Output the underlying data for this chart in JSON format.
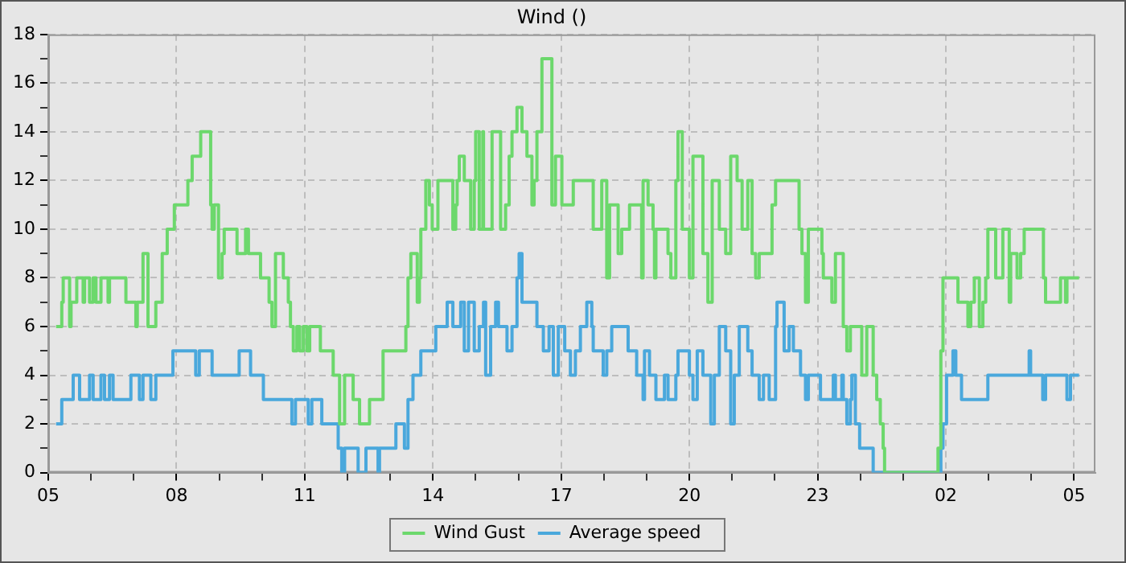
{
  "chart_data": {
    "type": "step",
    "title": "Wind ()",
    "xlim": [
      "--01-01T05:00",
      "--01-02T05:30"
    ],
    "xticks": [
      {
        "value": "--01-01T05:00",
        "label": "05"
      },
      {
        "value": "--01-01T06:00",
        "label": null
      },
      {
        "value": "--01-01T07:00",
        "label": null
      },
      {
        "value": "--01-01T08:00",
        "label": "08"
      },
      {
        "value": "--01-01T09:00",
        "label": null
      },
      {
        "value": "--01-01T10:00",
        "label": null
      },
      {
        "value": "--01-01T11:00",
        "label": "11"
      },
      {
        "value": "--01-01T12:00",
        "label": null
      },
      {
        "value": "--01-01T13:00",
        "label": null
      },
      {
        "value": "--01-01T14:00",
        "label": "14"
      },
      {
        "value": "--01-01T15:00",
        "label": null
      },
      {
        "value": "--01-01T16:00",
        "label": null
      },
      {
        "value": "--01-01T17:00",
        "label": "17"
      },
      {
        "value": "--01-01T18:00",
        "label": null
      },
      {
        "value": "--01-01T19:00",
        "label": null
      },
      {
        "value": "--01-01T20:00",
        "label": "20"
      },
      {
        "value": "--01-01T21:00",
        "label": null
      },
      {
        "value": "--01-01T22:00",
        "label": null
      },
      {
        "value": "--01-01T23:00",
        "label": "23"
      },
      {
        "value": "--01-02T00:00",
        "label": null
      },
      {
        "value": "--01-02T01:00",
        "label": null
      },
      {
        "value": "--01-02T02:00",
        "label": "02"
      },
      {
        "value": "--01-02T03:00",
        "label": null
      },
      {
        "value": "--01-02T04:00",
        "label": null
      },
      {
        "value": "--01-02T05:00",
        "label": "05"
      }
    ],
    "ylim": [
      0,
      18
    ],
    "yticks": [
      0,
      {
        "value": 1,
        "label": null
      },
      2,
      {
        "value": 3,
        "label": null
      },
      4,
      {
        "value": 5,
        "label": null
      },
      6,
      {
        "value": 7,
        "label": null
      },
      8,
      {
        "value": 9,
        "label": null
      },
      10,
      {
        "value": 11,
        "label": null
      },
      12,
      {
        "value": 13,
        "label": null
      },
      14,
      {
        "value": 15,
        "label": null
      },
      16,
      {
        "value": 17,
        "label": null
      },
      18
    ],
    "grid": true,
    "legend": "bottom",
    "line_style": "solid",
    "marker": "none",
    "series": [
      {
        "name": "Wind Gust",
        "color": "#6cd86c",
        "x": [
          "--01-01T05:11",
          "--01-01T05:19",
          "--01-01T05:21",
          "--01-01T05:30",
          "--01-01T05:32",
          "--01-01T05:40",
          "--01-01T05:49",
          "--01-01T05:51",
          "--01-01T05:58",
          "--01-01T06:03",
          "--01-01T06:07",
          "--01-01T06:14",
          "--01-01T06:24",
          "--01-01T06:26",
          "--01-01T06:49",
          "--01-01T07:03",
          "--01-01T07:05",
          "--01-01T07:13",
          "--01-01T07:20",
          "--01-01T07:31",
          "--01-01T07:40",
          "--01-01T07:47",
          "--01-01T07:57",
          "--01-01T08:16",
          "--01-01T08:22",
          "--01-01T08:34",
          "--01-01T08:48",
          "--01-01T08:50",
          "--01-01T08:53",
          "--01-01T08:59",
          "--01-01T09:04",
          "--01-01T09:07",
          "--01-01T09:25",
          "--01-01T09:37",
          "--01-01T09:41",
          "--01-01T09:58",
          "--01-01T10:10",
          "--01-01T10:14",
          "--01-01T10:19",
          "--01-01T10:30",
          "--01-01T10:37",
          "--01-01T10:40",
          "--01-01T10:44",
          "--01-01T10:49",
          "--01-01T10:53",
          "--01-01T10:58",
          "--01-01T11:03",
          "--01-01T11:07",
          "--01-01T11:22",
          "--01-01T11:40",
          "--01-01T11:49",
          "--01-01T11:56",
          "--01-01T12:08",
          "--01-01T12:17",
          "--01-01T12:31",
          "--01-01T12:50",
          "--01-01T13:22",
          "--01-01T13:25",
          "--01-01T13:29",
          "--01-01T13:38",
          "--01-01T13:41",
          "--01-01T13:43",
          "--01-01T13:50",
          "--01-01T13:55",
          "--01-01T13:59",
          "--01-01T14:07",
          "--01-01T14:28",
          "--01-01T14:32",
          "--01-01T14:34",
          "--01-01T14:37",
          "--01-01T14:44",
          "--01-01T14:53",
          "--01-01T14:58",
          "--01-01T15:00",
          "--01-01T15:05",
          "--01-01T15:10",
          "--01-01T15:11",
          "--01-01T15:23",
          "--01-01T15:35",
          "--01-01T15:42",
          "--01-01T15:47",
          "--01-01T15:51",
          "--01-01T15:58",
          "--01-01T16:05",
          "--01-01T16:12",
          "--01-01T16:19",
          "--01-01T16:22",
          "--01-01T16:26",
          "--01-01T16:33",
          "--01-01T16:47",
          "--01-01T16:52",
          "--01-01T17:01",
          "--01-01T17:17",
          "--01-01T17:45",
          "--01-01T17:57",
          "--01-01T18:04",
          "--01-01T18:08",
          "--01-01T18:20",
          "--01-01T18:25",
          "--01-01T18:36",
          "--01-01T18:53",
          "--01-01T18:55",
          "--01-01T19:02",
          "--01-01T19:09",
          "--01-01T19:11",
          "--01-01T19:13",
          "--01-01T19:30",
          "--01-01T19:34",
          "--01-01T19:41",
          "--01-01T19:44",
          "--01-01T19:50",
          "--01-01T20:00",
          "--01-01T20:05",
          "--01-01T20:19",
          "--01-01T20:26",
          "--01-01T20:32",
          "--01-01T20:42",
          "--01-01T20:51",
          "--01-01T20:58",
          "--01-01T21:07",
          "--01-01T21:14",
          "--01-01T21:22",
          "--01-01T21:28",
          "--01-01T21:33",
          "--01-01T21:38",
          "--01-01T21:56",
          "--01-01T22:01",
          "--01-01T22:34",
          "--01-01T22:38",
          "--01-01T22:43",
          "--01-01T22:47",
          "--01-01T23:06",
          "--01-01T23:08",
          "--01-01T23:20",
          "--01-01T23:25",
          "--01-01T23:36",
          "--01-01T23:41",
          "--01-01T23:46",
          "--01-02T00:02",
          "--01-02T00:09",
          "--01-02T00:18",
          "--01-02T00:23",
          "--01-02T00:28",
          "--01-02T00:32",
          "--01-02T00:34",
          "--01-02T01:49",
          "--01-02T01:53",
          "--01-02T01:56",
          "--01-02T02:17",
          "--01-02T02:31",
          "--01-02T02:35",
          "--01-02T02:40",
          "--01-02T02:47",
          "--01-02T02:52",
          "--01-02T02:56",
          "--01-02T02:59",
          "--01-02T03:10",
          "--01-02T03:20",
          "--01-02T03:29",
          "--01-02T03:31",
          "--01-02T03:40",
          "--01-02T03:45",
          "--01-02T03:50",
          "--01-02T04:17",
          "--01-02T04:20",
          "--01-02T04:41",
          "--01-02T04:48",
          "--01-02T04:50",
          "--01-02T05:07"
        ],
        "values": [
          6,
          7,
          8,
          6,
          7,
          8,
          7,
          8,
          7,
          8,
          7,
          8,
          7,
          8,
          7,
          6,
          7,
          9,
          6,
          7,
          9,
          10,
          11,
          12,
          13,
          14,
          11,
          10,
          11,
          8,
          9,
          10,
          9,
          10,
          9,
          8,
          7,
          6,
          9,
          8,
          7,
          6,
          5,
          6,
          5,
          6,
          5,
          6,
          5,
          4,
          2,
          4,
          3,
          2,
          3,
          5,
          6,
          8,
          9,
          7,
          8,
          10,
          12,
          11,
          10,
          12,
          10,
          11,
          12,
          13,
          12,
          10,
          12,
          14,
          10,
          14,
          10,
          14,
          10,
          11,
          13,
          14,
          15,
          14,
          13,
          11,
          12,
          14,
          17,
          11,
          13,
          11,
          12,
          10,
          12,
          8,
          11,
          9,
          10,
          11,
          8,
          12,
          11,
          10,
          8,
          10,
          9,
          8,
          12,
          14,
          10,
          8,
          13,
          9,
          7,
          12,
          10,
          9,
          13,
          12,
          10,
          12,
          9,
          8,
          9,
          11,
          12,
          10,
          9,
          7,
          10,
          9,
          8,
          7,
          9,
          6,
          5,
          6,
          4,
          6,
          4,
          3,
          2,
          1,
          0,
          1,
          5,
          8,
          7,
          6,
          7,
          8,
          6,
          7,
          8,
          10,
          8,
          10,
          7,
          9,
          8,
          9,
          10,
          8,
          7,
          8,
          7,
          8,
          8
        ]
      },
      {
        "name": "Average speed",
        "color": "#4aa8dc",
        "x": [
          "--01-01T05:11",
          "--01-01T05:19",
          "--01-01T05:35",
          "--01-01T05:44",
          "--01-01T05:58",
          "--01-01T06:03",
          "--01-01T06:14",
          "--01-01T06:19",
          "--01-01T06:26",
          "--01-01T06:31",
          "--01-01T06:56",
          "--01-01T07:08",
          "--01-01T07:13",
          "--01-01T07:24",
          "--01-01T07:31",
          "--01-01T07:55",
          "--01-01T08:27",
          "--01-01T08:32",
          "--01-01T08:50",
          "--01-01T09:28",
          "--01-01T09:44",
          "--01-01T10:02",
          "--01-01T10:42",
          "--01-01T10:47",
          "--01-01T11:05",
          "--01-01T11:10",
          "--01-01T11:24",
          "--01-01T11:47",
          "--01-01T11:52",
          "--01-01T11:56",
          "--01-01T12:15",
          "--01-01T12:26",
          "--01-01T12:43",
          "--01-01T12:45",
          "--01-01T13:08",
          "--01-01T13:20",
          "--01-01T13:25",
          "--01-01T13:32",
          "--01-01T13:43",
          "--01-01T14:04",
          "--01-01T14:20",
          "--01-01T14:28",
          "--01-01T14:39",
          "--01-01T14:44",
          "--01-01T14:50",
          "--01-01T14:58",
          "--01-01T15:05",
          "--01-01T15:11",
          "--01-01T15:14",
          "--01-01T15:21",
          "--01-01T15:28",
          "--01-01T15:32",
          "--01-01T15:44",
          "--01-01T15:51",
          "--01-01T15:58",
          "--01-01T16:01",
          "--01-01T16:05",
          "--01-01T16:26",
          "--01-01T16:35",
          "--01-01T16:43",
          "--01-01T16:49",
          "--01-01T16:56",
          "--01-01T17:05",
          "--01-01T17:13",
          "--01-01T17:20",
          "--01-01T17:27",
          "--01-01T17:36",
          "--01-01T17:43",
          "--01-01T17:45",
          "--01-01T17:59",
          "--01-01T18:04",
          "--01-01T18:11",
          "--01-01T18:34",
          "--01-01T18:46",
          "--01-01T18:55",
          "--01-01T18:57",
          "--01-01T19:04",
          "--01-01T19:13",
          "--01-01T19:25",
          "--01-01T19:30",
          "--01-01T19:41",
          "--01-01T19:44",
          "--01-01T20:00",
          "--01-01T20:05",
          "--01-01T20:11",
          "--01-01T20:19",
          "--01-01T20:30",
          "--01-01T20:35",
          "--01-01T20:42",
          "--01-01T20:51",
          "--01-01T20:58",
          "--01-01T21:03",
          "--01-01T21:10",
          "--01-01T21:22",
          "--01-01T21:28",
          "--01-01T21:38",
          "--01-01T21:44",
          "--01-01T21:52",
          "--01-01T22:01",
          "--01-01T22:03",
          "--01-01T22:13",
          "--01-01T22:20",
          "--01-01T22:26",
          "--01-01T22:36",
          "--01-01T22:43",
          "--01-01T22:47",
          "--01-01T23:04",
          "--01-01T23:22",
          "--01-01T23:25",
          "--01-01T23:34",
          "--01-01T23:36",
          "--01-01T23:41",
          "--01-01T23:46",
          "--01-01T23:48",
          "--01-01T23:53",
          "--01-01T23:59",
          "--01-02T00:18",
          "--01-02T01:53",
          "--01-02T01:56",
          "--01-02T02:01",
          "--01-02T02:10",
          "--01-02T02:14",
          "--01-02T02:22",
          "--01-02T02:59",
          "--01-02T03:57",
          "--01-02T03:59",
          "--01-02T04:16",
          "--01-02T04:20",
          "--01-02T04:50",
          "--01-02T04:55",
          "--01-02T05:07"
        ],
        "values": [
          2,
          3,
          4,
          3,
          4,
          3,
          4,
          3,
          4,
          3,
          4,
          3,
          4,
          3,
          4,
          5,
          4,
          5,
          4,
          5,
          4,
          3,
          2,
          3,
          2,
          3,
          2,
          1,
          0,
          1,
          0,
          1,
          0,
          1,
          2,
          1,
          3,
          4,
          5,
          6,
          7,
          6,
          7,
          5,
          7,
          5,
          6,
          7,
          4,
          6,
          7,
          6,
          5,
          6,
          8,
          9,
          7,
          6,
          5,
          6,
          4,
          6,
          5,
          4,
          5,
          6,
          7,
          6,
          5,
          4,
          5,
          6,
          5,
          4,
          3,
          5,
          4,
          3,
          4,
          3,
          4,
          5,
          4,
          3,
          5,
          4,
          2,
          4,
          6,
          5,
          2,
          4,
          6,
          5,
          4,
          3,
          4,
          3,
          6,
          7,
          5,
          6,
          5,
          4,
          3,
          4,
          3,
          4,
          3,
          4,
          3,
          2,
          3,
          4,
          2,
          1,
          0,
          1,
          2,
          4,
          5,
          4,
          3,
          4,
          5,
          4,
          3,
          4,
          3,
          4,
          4
        ]
      }
    ]
  }
}
